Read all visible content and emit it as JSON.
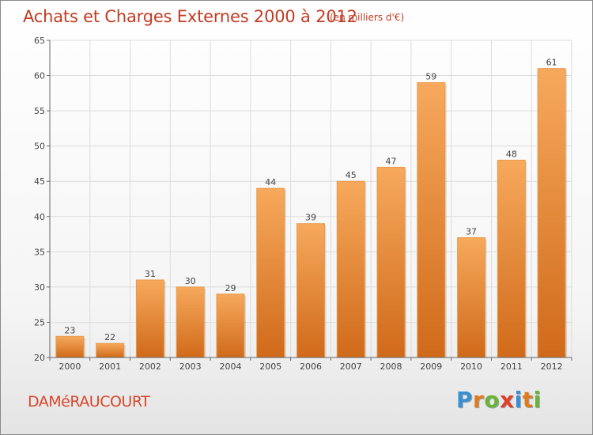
{
  "title": "Achats et Charges Externes 2000 à 2012",
  "subtitle": "(en milliers d'€)",
  "commune": "DAMéRAUCOURT",
  "logo": {
    "text": "Proxiti",
    "letter_colors": [
      "#3a8fd0",
      "#e07a1f",
      "#6bb23a",
      "#e0402a",
      "#3a8fd0",
      "#e07a1f",
      "#6bb23a"
    ]
  },
  "colors": {
    "bar_top": "#f7a95c",
    "bar_bottom": "#d06a1a",
    "title": "#c23b22",
    "grid": "#dcdcdc",
    "axis": "#666666"
  },
  "chart_data": {
    "type": "bar",
    "categories": [
      "2000",
      "2001",
      "2002",
      "2003",
      "2004",
      "2005",
      "2006",
      "2007",
      "2008",
      "2009",
      "2010",
      "2011",
      "2012"
    ],
    "values": [
      23,
      22,
      31,
      30,
      29,
      44,
      39,
      45,
      47,
      59,
      37,
      48,
      61
    ],
    "ylim": [
      20,
      65
    ],
    "yticks": [
      20,
      25,
      30,
      35,
      40,
      45,
      50,
      55,
      60,
      65
    ],
    "grid": true,
    "data_labels": true
  }
}
